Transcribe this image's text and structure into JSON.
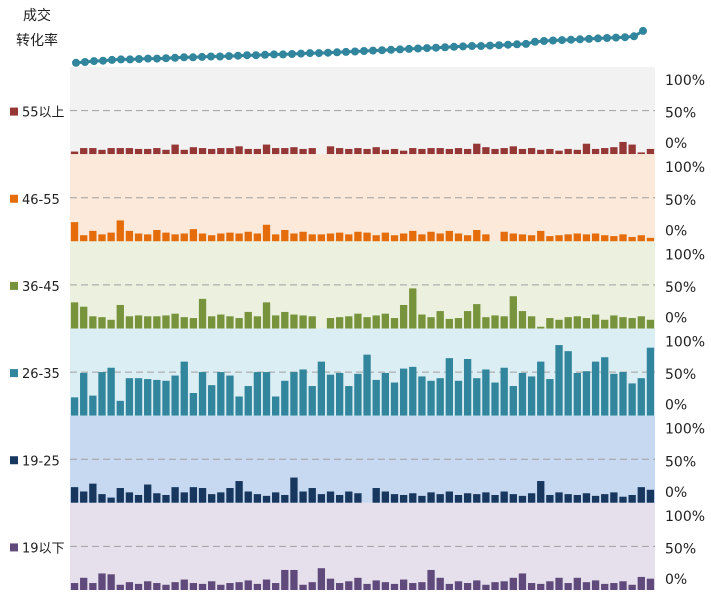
{
  "chart_data": {
    "type": "bar",
    "ylim": [
      0,
      100
    ],
    "yticks": [
      "100%",
      "50%",
      "0%"
    ],
    "gridlines": [
      50
    ],
    "legend": "left",
    "series": [
      {
        "name": "55以上",
        "color": "#953735",
        "background": "#f2f2f2",
        "values": [
          3,
          7,
          7,
          5,
          7,
          7,
          7,
          6,
          6,
          7,
          5,
          11,
          5,
          8,
          7,
          6,
          7,
          7,
          9,
          6,
          6,
          11,
          7,
          7,
          8,
          6,
          7,
          0,
          9,
          7,
          6,
          7,
          6,
          8,
          5,
          6,
          4,
          7,
          6,
          7,
          7,
          6,
          7,
          6,
          12,
          8,
          6,
          7,
          9,
          6,
          7,
          5,
          6,
          4,
          6,
          5,
          12,
          6,
          7,
          8,
          14,
          11,
          2,
          6
        ]
      },
      {
        "name": "46-55",
        "color": "#e46c0a",
        "background": "#fde9d9",
        "values": [
          22,
          7,
          12,
          8,
          10,
          24,
          12,
          9,
          8,
          13,
          10,
          8,
          9,
          14,
          9,
          7,
          9,
          10,
          9,
          11,
          9,
          19,
          8,
          13,
          9,
          11,
          8,
          8,
          9,
          10,
          8,
          11,
          10,
          7,
          10,
          7,
          9,
          12,
          8,
          11,
          9,
          12,
          9,
          7,
          13,
          8,
          0,
          11,
          9,
          8,
          7,
          12,
          6,
          7,
          8,
          9,
          8,
          9,
          7,
          6,
          8,
          5,
          7,
          4
        ]
      },
      {
        "name": "36-45",
        "color": "#77933c",
        "background": "#ebf1de",
        "values": [
          30,
          25,
          14,
          13,
          10,
          27,
          14,
          15,
          14,
          14,
          15,
          17,
          13,
          12,
          34,
          14,
          16,
          14,
          12,
          19,
          14,
          30,
          15,
          19,
          16,
          15,
          14,
          0,
          12,
          13,
          14,
          17,
          13,
          15,
          17,
          12,
          27,
          46,
          16,
          13,
          20,
          11,
          12,
          20,
          28,
          13,
          15,
          14,
          37,
          20,
          14,
          2,
          12,
          10,
          13,
          14,
          12,
          16,
          10,
          15,
          13,
          12,
          14,
          10
        ]
      },
      {
        "name": "26-35",
        "color": "#31859c",
        "background": "#dbeef4",
        "values": [
          21,
          49,
          23,
          50,
          55,
          17,
          43,
          43,
          42,
          41,
          40,
          46,
          62,
          26,
          50,
          35,
          50,
          46,
          22,
          34,
          50,
          50,
          22,
          40,
          50,
          53,
          34,
          62,
          47,
          49,
          34,
          48,
          70,
          41,
          49,
          38,
          54,
          56,
          45,
          40,
          43,
          66,
          40,
          65,
          43,
          53,
          38,
          55,
          34,
          49,
          45,
          62,
          42,
          81,
          74,
          49,
          51,
          62,
          67,
          48,
          50,
          37,
          43,
          78
        ]
      },
      {
        "name": "19-25",
        "color": "#17375e",
        "background": "#c6d9f1",
        "values": [
          18,
          13,
          22,
          10,
          6,
          17,
          12,
          9,
          21,
          11,
          9,
          18,
          12,
          18,
          17,
          10,
          12,
          17,
          25,
          13,
          10,
          8,
          12,
          9,
          29,
          13,
          17,
          10,
          13,
          9,
          13,
          11,
          0,
          17,
          13,
          10,
          9,
          11,
          8,
          12,
          10,
          13,
          9,
          11,
          10,
          12,
          9,
          13,
          10,
          8,
          11,
          25,
          9,
          12,
          10,
          9,
          11,
          8,
          10,
          12,
          7,
          9,
          18,
          15
        ]
      },
      {
        "name": "19以下",
        "color": "#604a7b",
        "background": "#e6e0ec",
        "values": [
          8,
          14,
          8,
          19,
          18,
          6,
          9,
          7,
          10,
          8,
          6,
          9,
          12,
          8,
          7,
          10,
          6,
          8,
          9,
          11,
          7,
          12,
          8,
          23,
          23,
          6,
          9,
          25,
          13,
          8,
          10,
          14,
          7,
          11,
          9,
          7,
          12,
          8,
          9,
          23,
          14,
          7,
          10,
          8,
          11,
          6,
          9,
          10,
          14,
          19,
          8,
          7,
          10,
          14,
          8,
          14,
          9,
          11,
          7,
          8,
          10,
          6,
          15,
          13
        ]
      }
    ],
    "line": {
      "label_lines": [
        "成交",
        "转化率"
      ],
      "color": "#31859c",
      "ylim": [
        0,
        1
      ],
      "values": [
        0.1,
        0.12,
        0.14,
        0.15,
        0.17,
        0.18,
        0.18,
        0.19,
        0.2,
        0.2,
        0.21,
        0.22,
        0.23,
        0.23,
        0.24,
        0.25,
        0.25,
        0.26,
        0.27,
        0.28,
        0.28,
        0.29,
        0.3,
        0.3,
        0.31,
        0.32,
        0.33,
        0.33,
        0.34,
        0.35,
        0.36,
        0.37,
        0.38,
        0.39,
        0.4,
        0.41,
        0.42,
        0.43,
        0.44,
        0.45,
        0.46,
        0.47,
        0.48,
        0.49,
        0.5,
        0.5,
        0.51,
        0.52,
        0.53,
        0.54,
        0.55,
        0.6,
        0.62,
        0.63,
        0.64,
        0.65,
        0.66,
        0.67,
        0.68,
        0.69,
        0.7,
        0.71,
        0.73,
        0.86
      ]
    }
  }
}
